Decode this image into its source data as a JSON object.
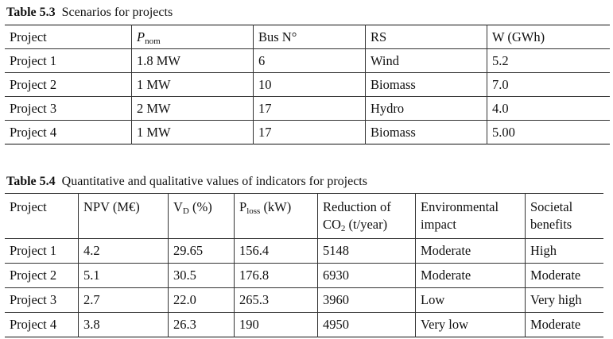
{
  "table1": {
    "number": "Table 5.3",
    "title": "Scenarios for projects",
    "headers": {
      "project": "Project",
      "pnom_main": "P",
      "pnom_sub": "nom",
      "bus": "Bus N°",
      "rs": "RS",
      "w": "W (GWh)"
    },
    "rows": [
      [
        "Project 1",
        "1.8 MW",
        "6",
        "Wind",
        "5.2"
      ],
      [
        "Project 2",
        "1 MW",
        "10",
        "Biomass",
        "7.0"
      ],
      [
        "Project 3",
        "2 MW",
        "17",
        "Hydro",
        "4.0"
      ],
      [
        "Project 4",
        "1 MW",
        "17",
        "Biomass",
        "5.00"
      ]
    ]
  },
  "table2": {
    "number": "Table 5.4",
    "title": "Quantitative and qualitative values of indicators for projects",
    "headers": {
      "project": "Project",
      "npv": "NPV (M€)",
      "vd_main": "V",
      "vd_sub": "D",
      "vd_unit": " (%)",
      "ploss_main": "P",
      "ploss_sub": "loss",
      "ploss_unit": " (kW)",
      "co2_line1": "Reduction of",
      "co2_main": "CO",
      "co2_sub": "2",
      "co2_unit": " (t/year)",
      "env_line1": "Environmental",
      "env_line2": "impact",
      "soc_line1": "Societal",
      "soc_line2": "benefits"
    },
    "rows": [
      [
        "Project 1",
        "4.2",
        "29.65",
        "156.4",
        "5148",
        "Moderate",
        "High"
      ],
      [
        "Project 2",
        "5.1",
        "30.5",
        "176.8",
        "6930",
        "Moderate",
        "Moderate"
      ],
      [
        "Project 3",
        "2.7",
        "22.0",
        "265.3",
        "3960",
        "Low",
        "Very high"
      ],
      [
        "Project 4",
        "3.8",
        "26.3",
        "190",
        "4950",
        "Very low",
        "Moderate"
      ]
    ]
  }
}
